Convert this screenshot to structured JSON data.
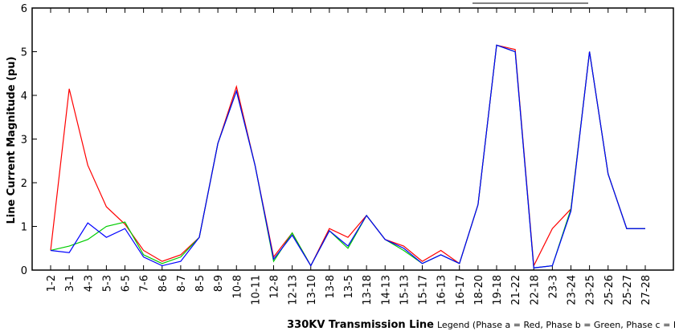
{
  "chart_data": {
    "type": "line",
    "ylabel": "Line Current Magnitude (pu)",
    "xlabel": "330KV Transmission Line",
    "note": "Legend (Phase a = Red, Phase b = Green, Phase c = Blue)",
    "categories": [
      "1-2",
      "3-1",
      "4-3",
      "5-3",
      "6-5",
      "7-6",
      "8-6",
      "8-7",
      "8-5",
      "8-9",
      "10-8",
      "10-11",
      "12-8",
      "12-13",
      "13-10",
      "13-8",
      "13-5",
      "13-18",
      "14-13",
      "15-13",
      "15-17",
      "16-13",
      "16-17",
      "18-20",
      "19-18",
      "21-22",
      "22-18",
      "23-3",
      "23-24",
      "23-25",
      "25-26",
      "25-27",
      "27-28"
    ],
    "series": [
      {
        "color": "#ff0000",
        "values": [
          0.45,
          4.15,
          2.4,
          1.45,
          1.05,
          0.45,
          0.2,
          0.35,
          0.75,
          2.9,
          4.2,
          2.4,
          0.3,
          0.85,
          0.1,
          0.95,
          0.75,
          1.25,
          0.7,
          0.55,
          0.2,
          0.45,
          0.15,
          1.5,
          5.15,
          5.05,
          0.1,
          0.95,
          1.4,
          5.0,
          2.2,
          0.95,
          0.95
        ]
      },
      {
        "color": "#00cc00",
        "values": [
          0.45,
          0.55,
          0.7,
          1.0,
          1.1,
          0.35,
          0.15,
          0.3,
          0.75,
          2.9,
          4.1,
          2.4,
          0.2,
          0.85,
          0.1,
          0.9,
          0.5,
          1.25,
          0.7,
          0.45,
          0.15,
          0.35,
          0.15,
          1.5,
          5.15,
          5.0,
          0.05,
          0.1,
          1.4,
          5.0,
          2.2,
          0.95,
          0.95
        ]
      },
      {
        "color": "#0000ff",
        "values": [
          0.45,
          0.4,
          1.08,
          0.75,
          0.95,
          0.3,
          0.1,
          0.2,
          0.75,
          2.9,
          4.1,
          2.4,
          0.25,
          0.8,
          0.1,
          0.9,
          0.55,
          1.25,
          0.7,
          0.5,
          0.15,
          0.35,
          0.15,
          1.5,
          5.15,
          5.0,
          0.05,
          0.1,
          1.35,
          5.0,
          2.2,
          0.95,
          0.95
        ]
      }
    ],
    "ylim": [
      0,
      6
    ],
    "yticks": [
      0,
      1,
      2,
      3,
      4,
      5,
      6
    ]
  }
}
